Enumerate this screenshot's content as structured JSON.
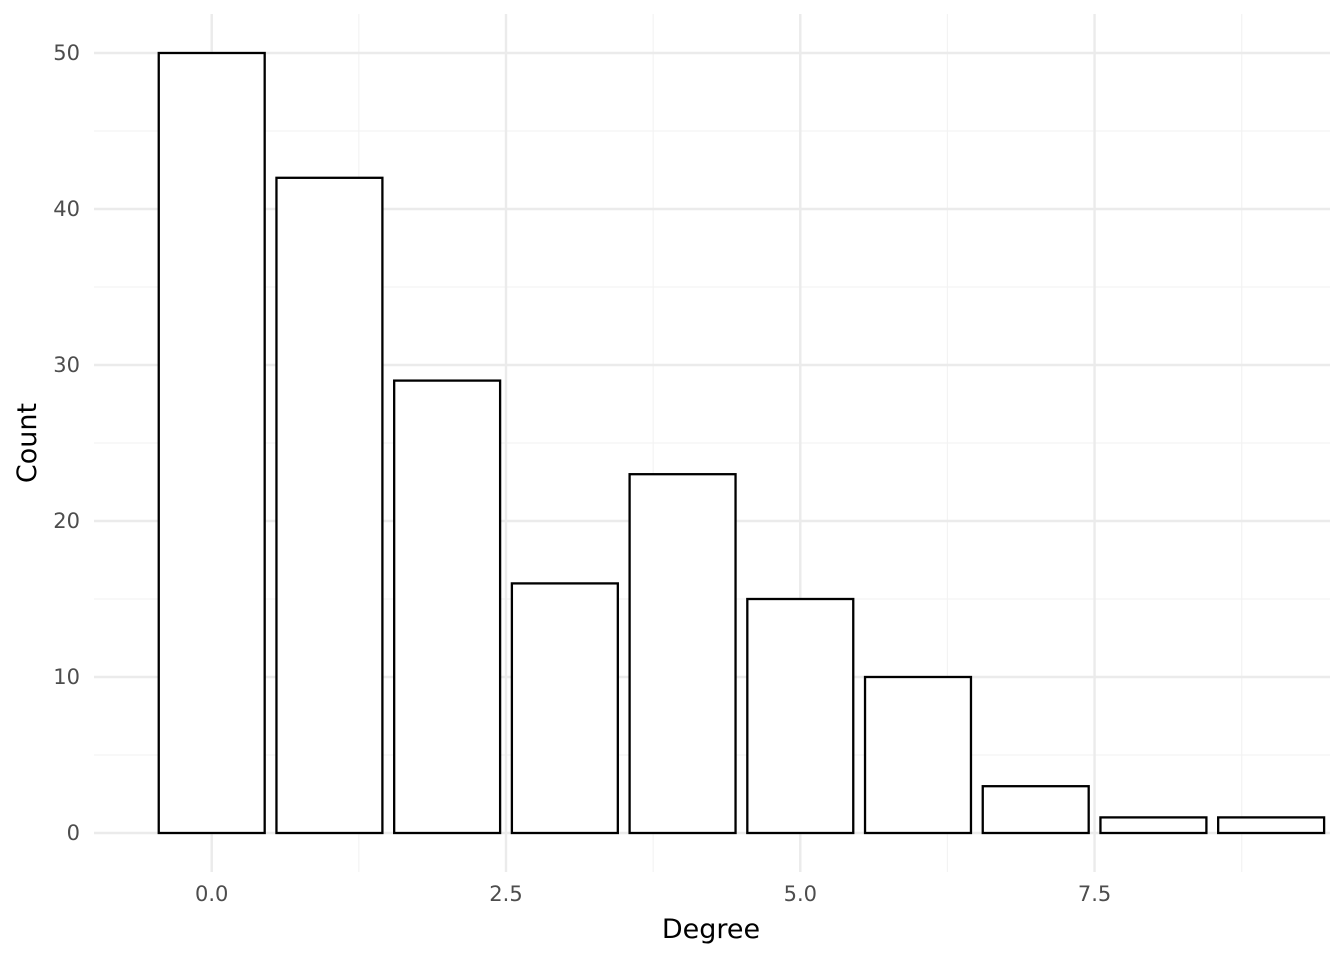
{
  "chart_data": {
    "type": "bar",
    "title": "",
    "xlabel": "Degree",
    "ylabel": "Count",
    "x": [
      0,
      1,
      2,
      3,
      4,
      5,
      6,
      7,
      8,
      9
    ],
    "values": [
      50,
      42,
      29,
      16,
      23,
      15,
      10,
      3,
      1,
      1
    ],
    "xlim": [
      -1.0,
      9.5
    ],
    "ylim": [
      -2.5,
      52.5
    ],
    "x_ticks": [
      0,
      2.5,
      5,
      7.5
    ],
    "x_tick_labels": [
      "0.0",
      "2.5",
      "5.0",
      "7.5"
    ],
    "y_ticks": [
      0,
      10,
      20,
      30,
      40,
      50
    ],
    "y_tick_labels": [
      "0",
      "10",
      "20",
      "30",
      "40",
      "50"
    ],
    "grid": true,
    "legend": "none",
    "colors": {
      "bar_fill": "#ffffff",
      "bar_outline": "#000000",
      "grid_major": "#ebebeb",
      "grid_minor": "#f3f3f3",
      "tick_text": "#4d4d4d",
      "title_text": "#000000"
    }
  }
}
